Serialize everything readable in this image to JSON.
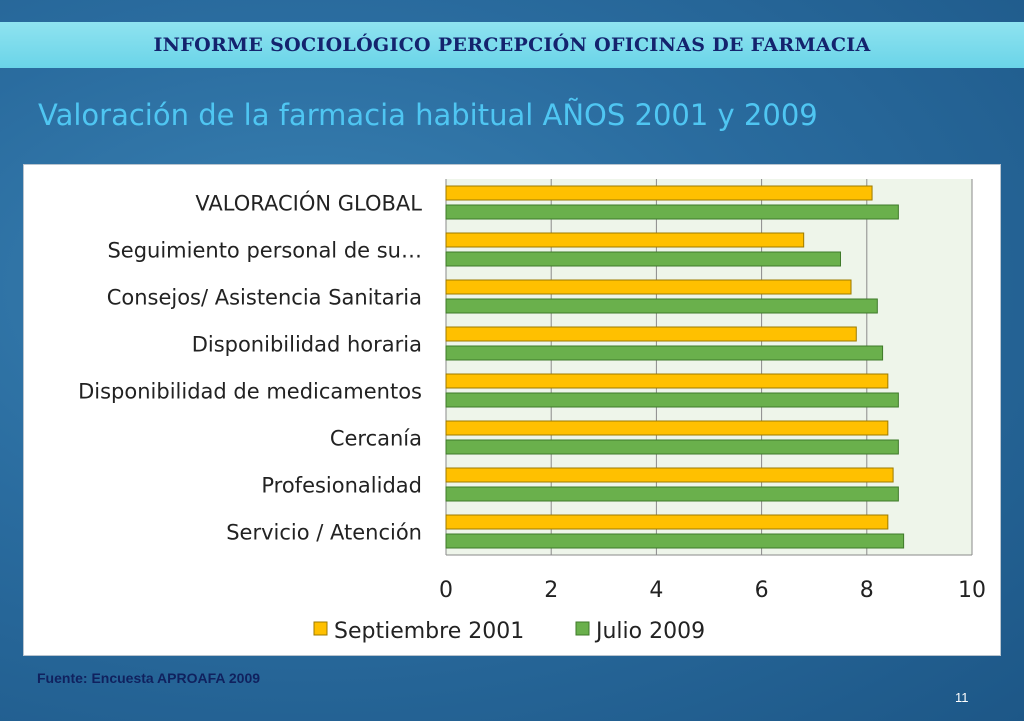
{
  "header": {
    "title": "INFORME SOCIOLÓGICO PERCEPCIÓN OFICINAS DE FARMACIA"
  },
  "subtitle": "Valoración de la farmacia habitual AÑOS 2001 y 2009",
  "footer": {
    "source": "Fuente: Encuesta APROAFA 2009",
    "page_number": "11"
  },
  "colors": {
    "series_2001": "#ffc000",
    "series_2009": "#6ab04c",
    "plot_bg": "#eef5ea"
  },
  "chart_data": {
    "type": "bar",
    "orientation": "horizontal",
    "title": "",
    "xlabel": "",
    "ylabel": "",
    "xlim": [
      0,
      10
    ],
    "ticks": [
      "0",
      "2",
      "4",
      "6",
      "8",
      "10"
    ],
    "categories": [
      "VALORACIÓN GLOBAL",
      "Seguimiento personal de su…",
      "Consejos/  Asistencia Sanitaria",
      "Disponibilidad horaria",
      "Disponibilidad de medicamentos",
      "Cercanía",
      "Profesionalidad",
      "Servicio / Atención"
    ],
    "series": [
      {
        "name": "Septiembre 2001",
        "values": [
          8.1,
          6.8,
          7.7,
          7.8,
          8.4,
          8.4,
          8.5,
          8.4
        ]
      },
      {
        "name": "Julio 2009",
        "values": [
          8.6,
          7.5,
          8.2,
          8.3,
          8.6,
          8.6,
          8.6,
          8.7
        ]
      }
    ],
    "legend_position": "bottom",
    "grid": true
  }
}
